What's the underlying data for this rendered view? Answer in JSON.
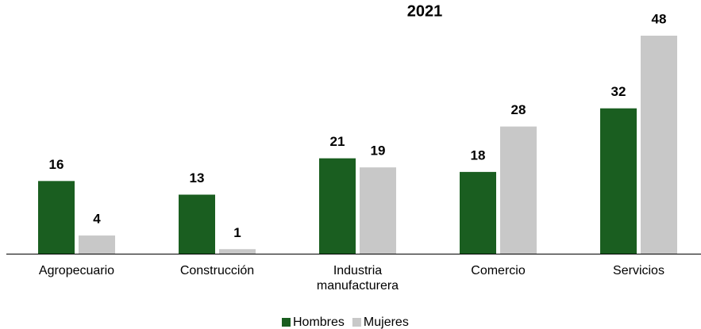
{
  "chart_data": {
    "type": "bar",
    "title": "2021",
    "categories": [
      "Agropecuario",
      "Construcción",
      "Industria manufacturera",
      "Comercio",
      "Servicios"
    ],
    "series": [
      {
        "name": "Hombres",
        "color": "#1a5e20",
        "values": [
          16,
          13,
          21,
          18,
          32
        ]
      },
      {
        "name": "Mujeres",
        "color": "#c8c8c8",
        "values": [
          4,
          1,
          19,
          28,
          48
        ]
      }
    ],
    "ylim": [
      0,
      48
    ],
    "legend": "bottom"
  }
}
